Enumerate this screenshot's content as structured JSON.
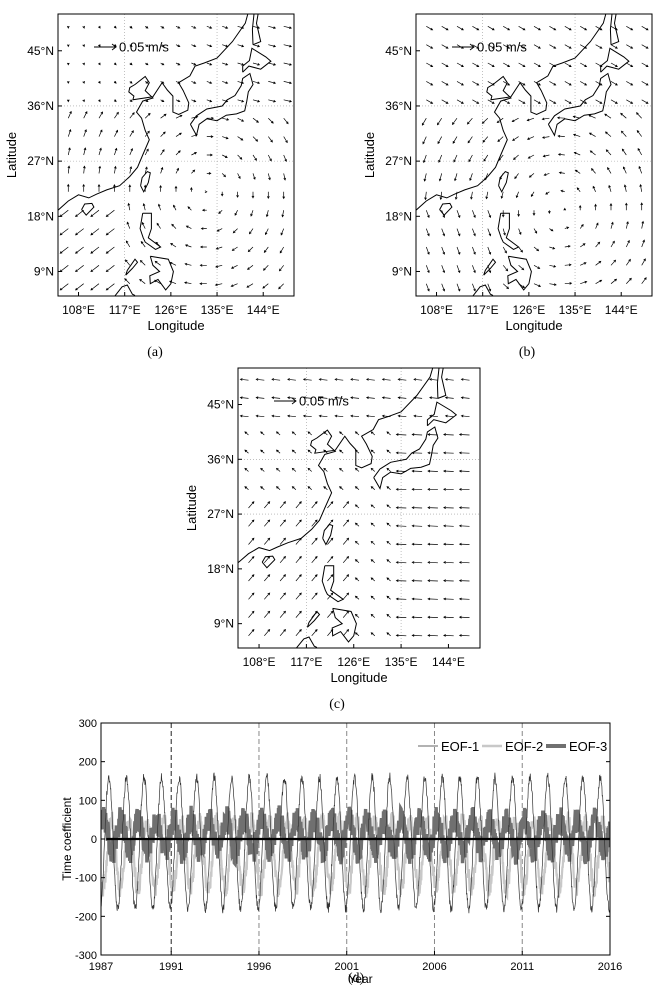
{
  "maps": [
    {
      "id": "a",
      "caption": "(a)",
      "scale_label": "0.05 m/s",
      "xlabel": "Longitude",
      "ylabel": "Latitude",
      "x_ticks": [
        "108°E",
        "117°E",
        "126°E",
        "135°E",
        "144°E"
      ],
      "y_ticks": [
        "45°N",
        "36°N",
        "27°N",
        "18°N",
        "9°N"
      ]
    },
    {
      "id": "b",
      "caption": "(b)",
      "scale_label": "0.05 m/s",
      "xlabel": "Longitude",
      "ylabel": "Latitude",
      "x_ticks": [
        "108°E",
        "117°E",
        "126°E",
        "135°E",
        "144°E"
      ],
      "y_ticks": [
        "45°N",
        "36°N",
        "27°N",
        "18°N",
        "9°N"
      ]
    },
    {
      "id": "c",
      "caption": "(c)",
      "scale_label": "0.05 m/s",
      "xlabel": "Longitude",
      "ylabel": "Latitude",
      "x_ticks": [
        "108°E",
        "117°E",
        "126°E",
        "135°E",
        "144°E"
      ],
      "y_ticks": [
        "45°N",
        "36°N",
        "27°N",
        "18°N",
        "9°N"
      ]
    }
  ],
  "chart_data": [
    {
      "type": "quiver",
      "panel": "(a)",
      "x_range": [
        104,
        150
      ],
      "y_range": [
        5,
        51
      ],
      "reference_vector": "0.05 m/s",
      "pattern": "anticyclonic gyre over the East China Sea / Northwest Pacific, flow to the southwest in the South China Sea"
    },
    {
      "type": "quiver",
      "panel": "(b)",
      "x_range": [
        104,
        150
      ],
      "y_range": [
        5,
        51
      ],
      "reference_vector": "0.05 m/s",
      "pattern": "cyclonic gyre with strong flow around the Philippines and Luzon Strait"
    },
    {
      "type": "quiver",
      "panel": "(c)",
      "x_range": [
        104,
        150
      ],
      "y_range": [
        5,
        51
      ],
      "reference_vector": "0.05 m/s",
      "pattern": "strong westward flow east of 135°E, northeastward flow along the China coast"
    },
    {
      "type": "line",
      "panel": "(d)",
      "caption": "(d)",
      "xlabel": "Year",
      "ylabel": "Time coefficient",
      "xlim": [
        1987,
        2016
      ],
      "ylim": [
        -300,
        300
      ],
      "x_ticks": [
        "1987",
        "1991",
        "1996",
        "2001",
        "2006",
        "2011",
        "2016"
      ],
      "y_ticks": [
        "300",
        "200",
        "100",
        "0",
        "-100",
        "-200",
        "-300"
      ],
      "vertical_dashed_lines": [
        1991,
        1996,
        2001,
        2006,
        2011
      ],
      "legend_position": "top-right",
      "series": [
        {
          "name": "EOF-1",
          "color": "#333333",
          "style": "thin",
          "amplitude": 170,
          "period_years": 1
        },
        {
          "name": "EOF-2",
          "color": "#c8c8c8",
          "style": "medium",
          "amplitude": 110,
          "period_years": 1
        },
        {
          "name": "EOF-3",
          "color": "#707070",
          "style": "thick",
          "amplitude": 60,
          "period_years": 1
        }
      ]
    }
  ],
  "colors": {
    "axis": "#000000",
    "arrow": "#000000",
    "grid": "#999999",
    "eof1": "#333333",
    "eof2": "#c8c8c8",
    "eof3": "#707070"
  }
}
